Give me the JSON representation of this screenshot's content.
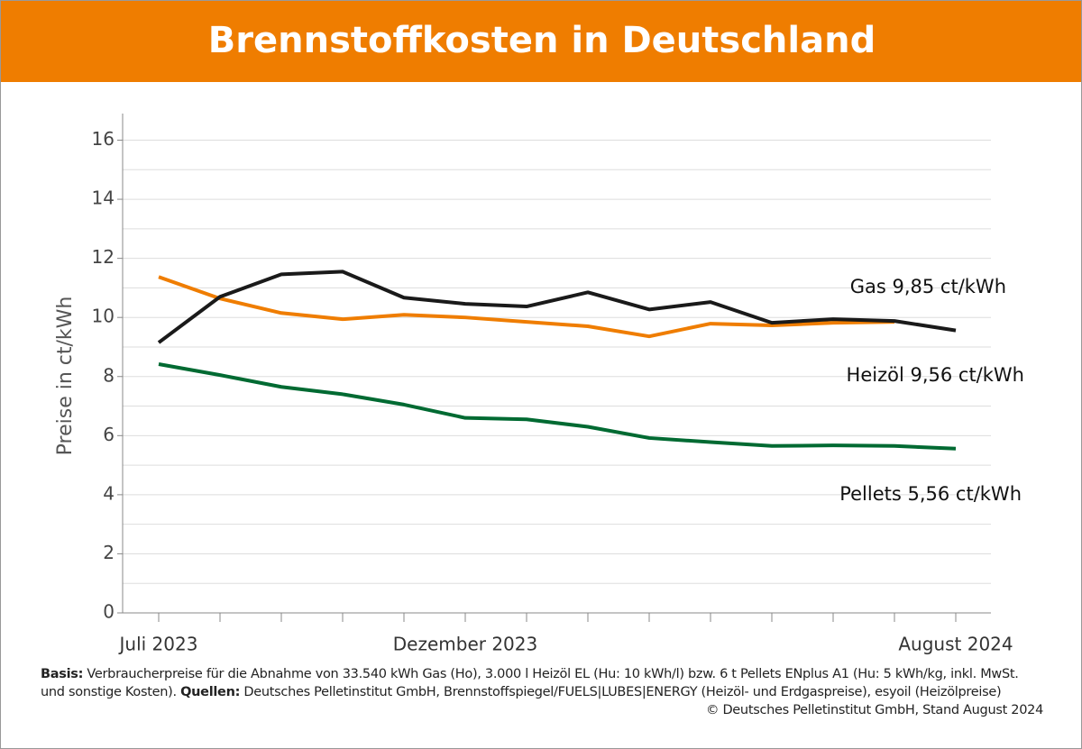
{
  "chart_data": {
    "type": "line",
    "title": "Brennstoffkosten in Deutschland",
    "y_label": "Preise in ct/kWh",
    "categories": [
      "Juli 2023",
      null,
      null,
      null,
      null,
      "Dezember 2023",
      null,
      null,
      null,
      null,
      null,
      null,
      null,
      "August 2024"
    ],
    "series": [
      {
        "name": "Gas 9,85 ct/kWh",
        "color": "#ef7d00",
        "values": [
          11.37,
          10.64,
          10.15,
          9.94,
          10.09,
          10.0,
          9.85,
          9.7,
          9.36,
          9.79,
          9.73,
          9.82,
          9.85,
          null
        ]
      },
      {
        "name": "Heizöl 9,56 ct/kWh",
        "color": "#1a1a1a",
        "values": [
          9.15,
          10.7,
          11.46,
          11.55,
          10.67,
          10.46,
          10.37,
          10.85,
          10.27,
          10.52,
          9.82,
          9.94,
          9.88,
          9.56
        ]
      },
      {
        "name": "Pellets 5,56 ct/kWh",
        "color": "#006a32",
        "values": [
          8.42,
          8.05,
          7.65,
          7.4,
          7.05,
          6.6,
          6.55,
          6.3,
          5.92,
          5.78,
          5.65,
          5.67,
          5.65,
          5.56
        ]
      }
    ],
    "ylim": [
      0,
      16.9
    ],
    "yticks": [
      0,
      2,
      4,
      6,
      8,
      10,
      12,
      14,
      16
    ],
    "yminor": [
      1,
      3,
      5,
      7,
      9,
      11,
      13,
      15
    ],
    "grid": true,
    "footnote": {
      "basis_label": "Basis:",
      "basis": "Verbraucherpreise für die Abnahme von 33.540 kWh Gas (Ho), 3.000 l Heizöl EL (Hu: 10 kWh/l) bzw. 6 t Pellets ENplus A1 (Hu: 5 kWh/kg, inkl. MwSt. und sonstige Kosten).",
      "sources_label": "Quellen:",
      "sources": "Deutsches Pelletinstitut GmbH, Brennstoffspiegel/FUELS|LUBES|ENERGY (Heizöl- und Erdgaspreise), esyoil (Heizölpreise)",
      "copyright": "© Deutsches Pelletinstitut GmbH, Stand August 2024"
    }
  }
}
